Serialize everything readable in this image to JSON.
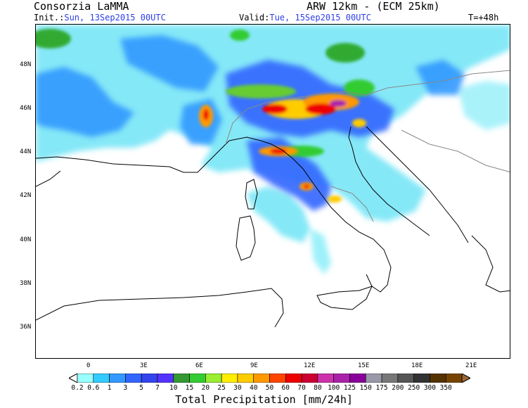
{
  "header": {
    "title_left": "Consorzia LaMMA",
    "title_right": "ARW 12km - (ECM 25km)",
    "init_label": "Init.:",
    "init_value": "Sun, 13Sep2015 00UTC",
    "valid_label": "Valid:",
    "valid_value": "Tue, 15Sep2015 00UTC",
    "forecast_hour": "T=+48h"
  },
  "axes": {
    "lat_labels": [
      "48N",
      "46N",
      "44N",
      "42N",
      "40N",
      "38N",
      "36N"
    ],
    "lon_labels": [
      "0",
      "3E",
      "6E",
      "9E",
      "12E",
      "15E",
      "18E",
      "21E"
    ]
  },
  "legend": {
    "title": "Total Precipitation [mm/24h]",
    "thresholds": [
      "0.2",
      "0.6",
      "1",
      "3",
      "5",
      "7",
      "10",
      "15",
      "20",
      "25",
      "30",
      "40",
      "50",
      "60",
      "70",
      "80",
      "100",
      "125",
      "150",
      "175",
      "200",
      "250",
      "300",
      "350"
    ],
    "colors": [
      "#ffffff",
      "#99ffff",
      "#33ccff",
      "#3399ff",
      "#3366ff",
      "#3344ee",
      "#5533ff",
      "#339933",
      "#33cc33",
      "#99ee33",
      "#ffee00",
      "#ffcc00",
      "#ff9900",
      "#ff4400",
      "#ee0000",
      "#cc0033",
      "#cc33aa",
      "#aa22aa",
      "#880099",
      "#9999aa",
      "#777777",
      "#555555",
      "#333333",
      "#553300",
      "#774400",
      "#996633"
    ]
  }
}
